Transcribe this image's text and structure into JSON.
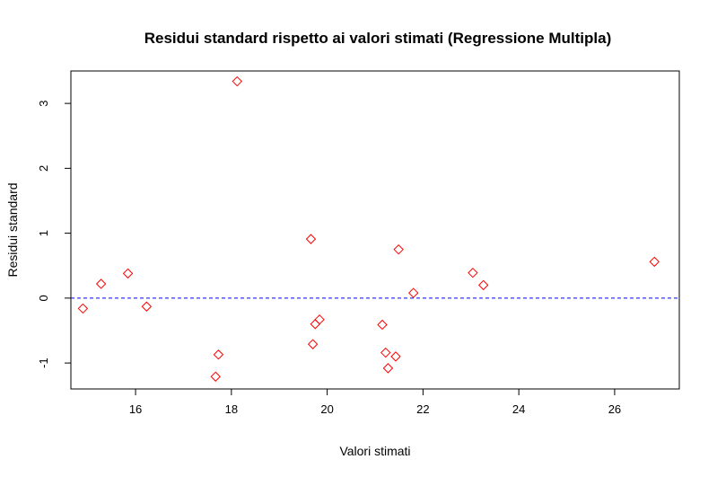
{
  "chart_data": {
    "type": "scatter",
    "title": "Residui standard rispetto ai valori stimati (Regressione Multipla)",
    "xlabel": "Valori   stimati",
    "ylabel": "Residui   standard",
    "xlim": [
      14.65,
      27.35
    ],
    "ylim": [
      -1.4,
      3.5
    ],
    "xticks": [
      16,
      18,
      20,
      22,
      24,
      26
    ],
    "yticks": [
      -1,
      0,
      1,
      2,
      3
    ],
    "xtick_labels": [
      "16",
      "18",
      "20",
      "22",
      "24",
      "26"
    ],
    "ytick_labels": [
      "-1",
      "0",
      "1",
      "2",
      "3"
    ],
    "reference_line": {
      "y": 0,
      "color": "#0000ff",
      "style": "dashed"
    },
    "marker": {
      "shape": "diamond",
      "color": "#ff0000"
    },
    "grid": false,
    "points": [
      {
        "x": 14.9,
        "y": -0.16
      },
      {
        "x": 15.28,
        "y": 0.22
      },
      {
        "x": 15.84,
        "y": 0.38
      },
      {
        "x": 16.23,
        "y": -0.13
      },
      {
        "x": 17.67,
        "y": -1.21
      },
      {
        "x": 17.73,
        "y": -0.87
      },
      {
        "x": 18.12,
        "y": 3.34
      },
      {
        "x": 19.66,
        "y": 0.91
      },
      {
        "x": 19.7,
        "y": -0.71
      },
      {
        "x": 19.75,
        "y": -0.4
      },
      {
        "x": 19.84,
        "y": -0.33
      },
      {
        "x": 21.15,
        "y": -0.41
      },
      {
        "x": 21.22,
        "y": -0.84
      },
      {
        "x": 21.27,
        "y": -1.08
      },
      {
        "x": 21.43,
        "y": -0.9
      },
      {
        "x": 21.49,
        "y": 0.75
      },
      {
        "x": 21.8,
        "y": 0.08
      },
      {
        "x": 23.04,
        "y": 0.39
      },
      {
        "x": 23.26,
        "y": 0.2
      },
      {
        "x": 26.83,
        "y": 0.56
      }
    ]
  }
}
